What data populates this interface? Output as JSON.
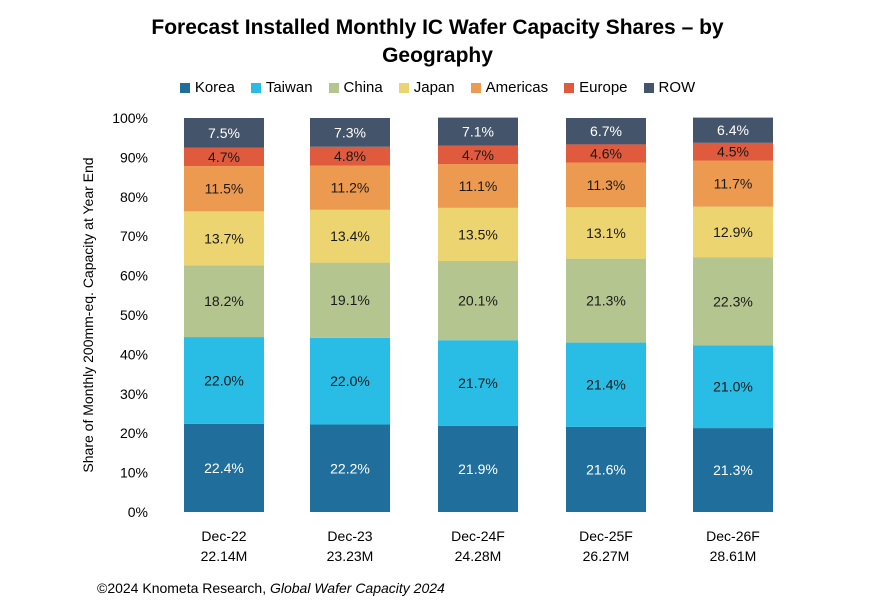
{
  "chart_data": {
    "type": "bar",
    "stacked": true,
    "title_line1": "Forecast Installed Monthly IC Wafer Capacity Shares – by",
    "title_line2": "Geography",
    "ylabel": "Share of Monthly 200mm-eq. Capacity at Year End",
    "ylim": [
      0,
      100
    ],
    "yticks": [
      "0%",
      "10%",
      "20%",
      "30%",
      "40%",
      "50%",
      "60%",
      "70%",
      "80%",
      "90%",
      "100%"
    ],
    "categories": [
      "Dec-22",
      "Dec-23",
      "Dec-24F",
      "Dec-25F",
      "Dec-26F"
    ],
    "category_totals": [
      "22.14M",
      "23.23M",
      "24.28M",
      "26.27M",
      "28.61M"
    ],
    "series": [
      {
        "name": "Korea",
        "color": "#1f6e9c",
        "values": [
          22.4,
          22.2,
          21.9,
          21.6,
          21.3
        ],
        "labels": [
          "22.4%",
          "22.2%",
          "21.9%",
          "21.6%",
          "21.3%"
        ]
      },
      {
        "name": "Taiwan",
        "color": "#29bce4",
        "values": [
          22.0,
          22.0,
          21.7,
          21.4,
          21.0
        ],
        "labels": [
          "22.0%",
          "22.0%",
          "21.7%",
          "21.4%",
          "21.0%"
        ]
      },
      {
        "name": "China",
        "color": "#b4c58f",
        "values": [
          18.2,
          19.1,
          20.1,
          21.3,
          22.3
        ],
        "labels": [
          "18.2%",
          "19.1%",
          "20.1%",
          "21.3%",
          "22.3%"
        ]
      },
      {
        "name": "Japan",
        "color": "#ecd470",
        "values": [
          13.7,
          13.4,
          13.5,
          13.1,
          12.9
        ],
        "labels": [
          "13.7%",
          "13.4%",
          "13.5%",
          "13.1%",
          "12.9%"
        ]
      },
      {
        "name": "Americas",
        "color": "#ec9a50",
        "values": [
          11.5,
          11.2,
          11.1,
          11.3,
          11.7
        ],
        "labels": [
          "11.5%",
          "11.2%",
          "11.1%",
          "11.3%",
          "11.7%"
        ]
      },
      {
        "name": "Europe",
        "color": "#e05a3d",
        "values": [
          4.7,
          4.8,
          4.7,
          4.6,
          4.5
        ],
        "labels": [
          "4.7%",
          "4.8%",
          "4.7%",
          "4.6%",
          "4.5%"
        ]
      },
      {
        "name": "ROW",
        "color": "#44546a",
        "values": [
          7.5,
          7.3,
          7.1,
          6.7,
          6.4
        ],
        "labels": [
          "7.5%",
          "7.3%",
          "7.1%",
          "6.7%",
          "6.4%"
        ]
      }
    ],
    "grid": false,
    "legend_position": "top"
  },
  "source": {
    "prefix": "©2024 Knometa Research, ",
    "italic": "Global Wafer Capacity 2024"
  }
}
